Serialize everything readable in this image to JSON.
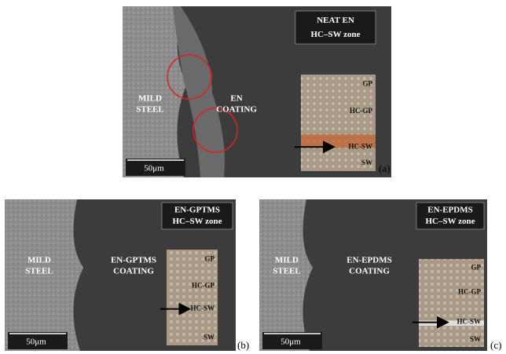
{
  "panels": [
    {
      "label": "(a)",
      "title": [
        "NEAT EN",
        "HC–SW zone"
      ],
      "substrate": [
        "MILD",
        "STEEL"
      ],
      "coating": [
        "EN",
        "COATING"
      ],
      "inset_layers": [
        "GP",
        "HC-GP",
        "HC-SW",
        "SW"
      ],
      "scale_bar": "50μm"
    },
    {
      "label": "(b)",
      "title": [
        "EN-GPTMS",
        "HC–SW zone"
      ],
      "substrate": [
        "MILD",
        "STEEL"
      ],
      "coating": [
        "EN-GPTMS",
        "COATING"
      ],
      "inset_layers": [
        "GP",
        "HC-GP",
        "HC-SW",
        "SW"
      ],
      "scale_bar": "50μm"
    },
    {
      "label": "(c)",
      "title": [
        "EN-EPDMS",
        "HC–SW zone"
      ],
      "substrate": [
        "MILD",
        "STEEL"
      ],
      "coating": [
        "EN-EPDMS",
        "COATING"
      ],
      "inset_layers": [
        "GP",
        "HC-GP",
        "HC-SW",
        "SW"
      ],
      "scale_bar": "50μm"
    }
  ]
}
